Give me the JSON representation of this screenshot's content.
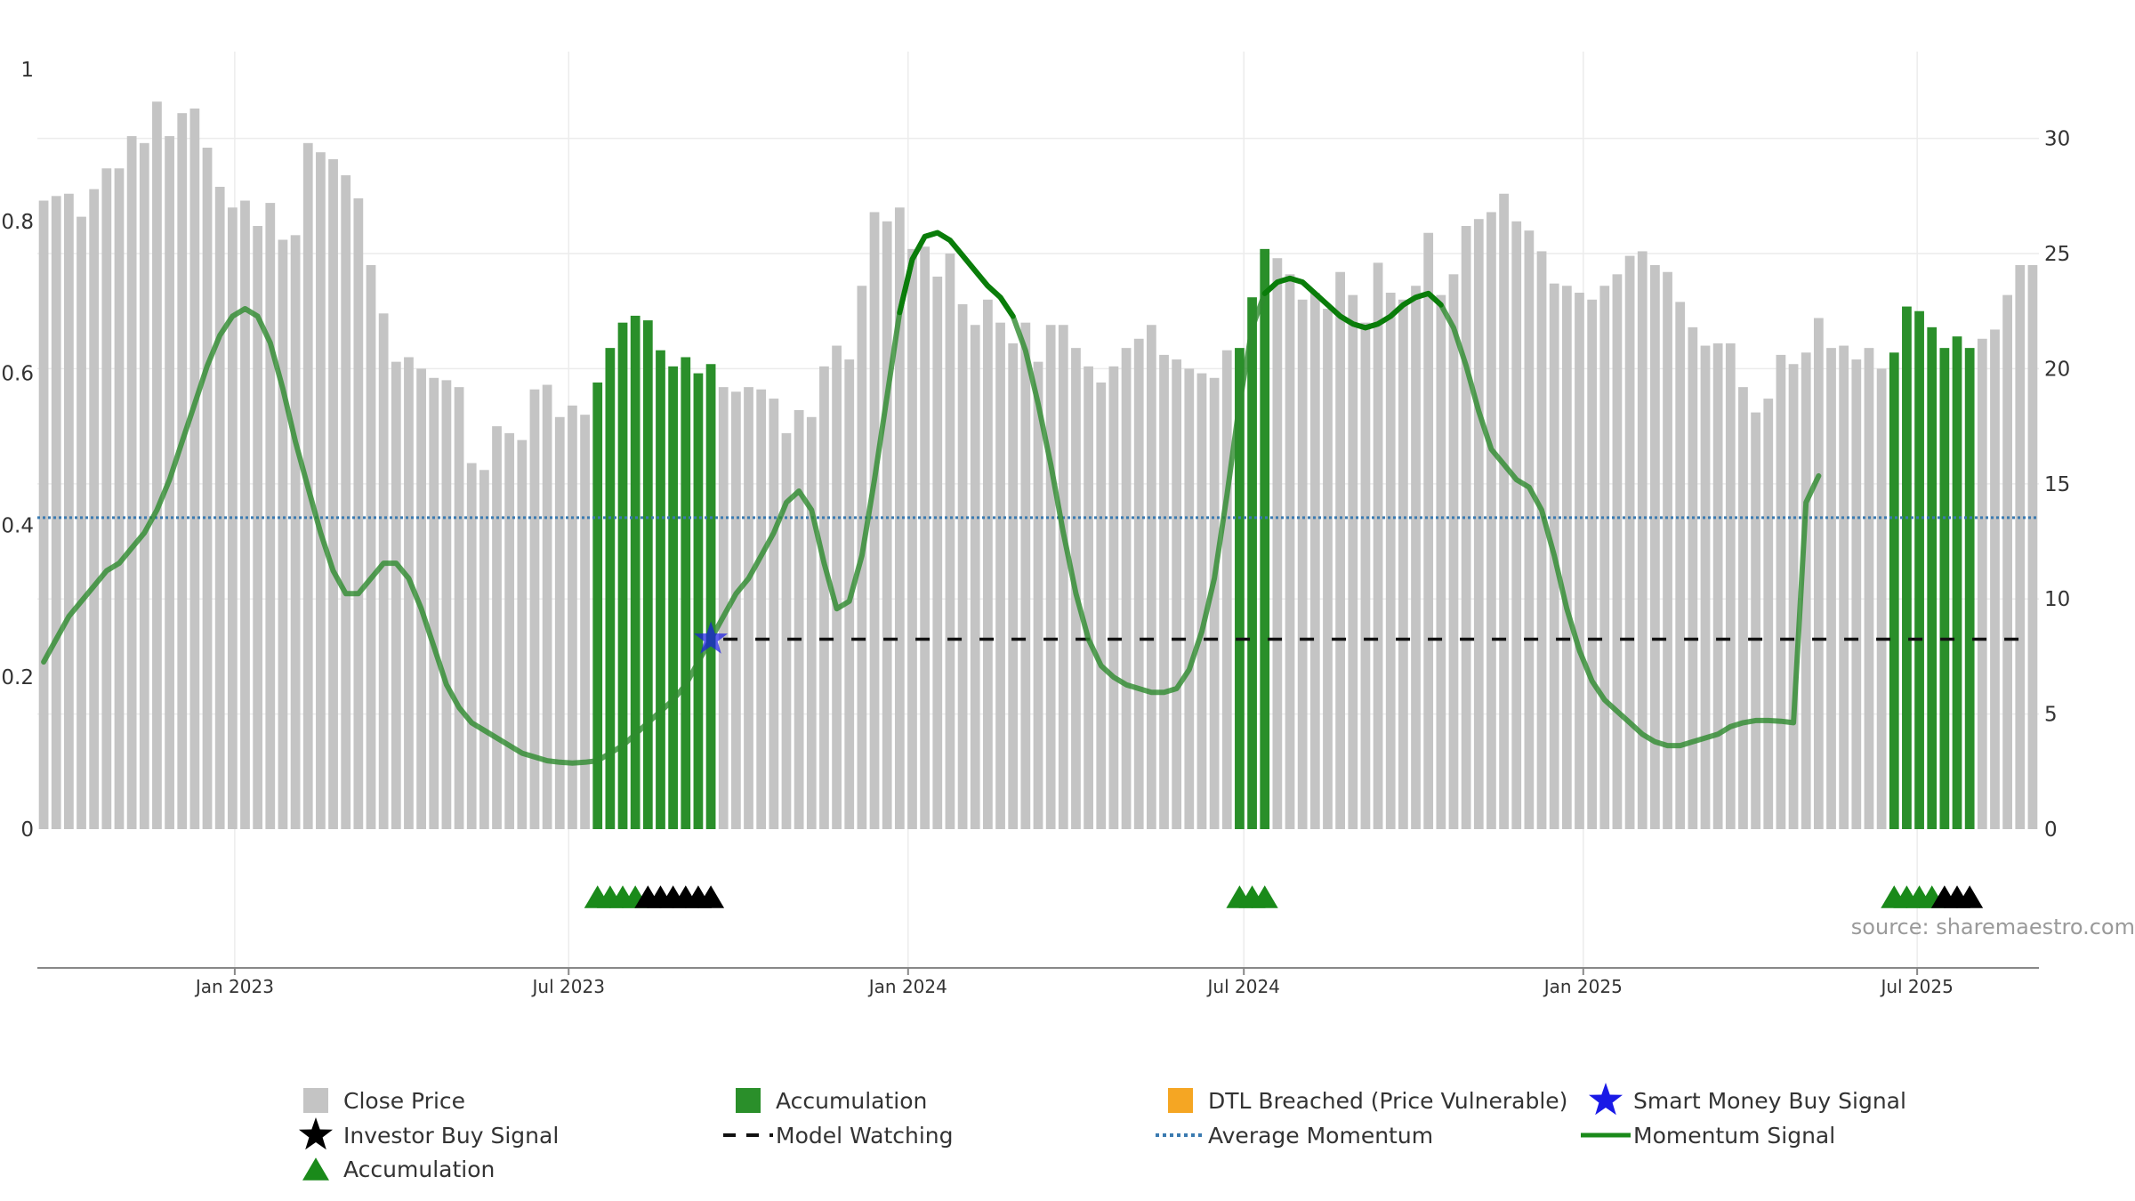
{
  "chart_data": {
    "type": "bar",
    "title": "",
    "source": "source: sharemaestro.com",
    "colors": {
      "close_price": "#c4c4c4",
      "accumulation": "#2a8f2a",
      "accumulation_marker": "#1a8a1a",
      "investor_marker": "#000000",
      "smart_money": "#1a1ae6",
      "model_watching": "#111111",
      "average_momentum": "#3a7ab0",
      "momentum": "#2e8b2e",
      "dtl": "#f5a623"
    },
    "x_axis": {
      "start": "2022-09-16",
      "end": "2025-09-05",
      "ticks": [
        {
          "date": "2023-01-01",
          "label": "Jan 2023"
        },
        {
          "date": "2023-07-01",
          "label": "Jul 2023"
        },
        {
          "date": "2024-01-01",
          "label": "Jan 2024"
        },
        {
          "date": "2024-07-01",
          "label": "Jul 2024"
        },
        {
          "date": "2025-01-01",
          "label": "Jan 2025"
        },
        {
          "date": "2025-07-01",
          "label": "Jul 2025"
        }
      ]
    },
    "left_axis": {
      "range": [
        0,
        1
      ],
      "tick_values": [
        0,
        0.2,
        0.4,
        0.6,
        0.8,
        1
      ],
      "tick_labels": [
        "0",
        "0.2",
        "0.4",
        "0.6",
        "0.8",
        "1"
      ]
    },
    "right_axis": {
      "range": [
        0,
        33
      ],
      "tick_values": [
        0,
        5,
        10,
        15,
        20,
        25,
        30
      ],
      "tick_labels": [
        "0",
        "5",
        "10",
        "15",
        "20",
        "25",
        "30"
      ]
    },
    "close_price": {
      "name": "Close Price",
      "values": [
        27.3,
        27.5,
        27.6,
        26.6,
        27.8,
        28.7,
        28.7,
        30.1,
        29.8,
        31.6,
        30.1,
        31.1,
        31.3,
        29.6,
        27.9,
        27.0,
        27.3,
        26.2,
        27.2,
        25.6,
        25.8,
        29.8,
        29.4,
        29.1,
        28.4,
        27.4,
        24.5,
        22.4,
        20.3,
        20.5,
        20.0,
        19.6,
        19.5,
        19.2,
        15.9,
        15.6,
        17.5,
        17.2,
        16.9,
        19.1,
        19.3,
        17.9,
        18.4,
        18.0,
        19.4,
        20.9,
        22.0,
        22.3,
        22.1,
        20.8,
        20.1,
        20.5,
        19.8,
        20.2,
        19.2,
        19.0,
        19.2,
        19.1,
        18.7,
        17.2,
        18.2,
        17.9,
        20.1,
        21.0,
        20.4,
        23.6,
        26.8,
        26.4,
        27.0,
        25.2,
        25.3,
        24.0,
        25.0,
        22.8,
        21.9,
        23.0,
        22.0,
        21.1,
        22.0,
        20.3,
        21.9,
        21.9,
        20.9,
        20.1,
        19.4,
        20.1,
        20.9,
        21.3,
        21.9,
        20.6,
        20.4,
        20.0,
        19.8,
        19.6,
        20.8,
        20.9,
        23.1,
        25.2,
        24.8,
        24.1,
        23.0,
        23.3,
        22.6,
        24.2,
        23.2,
        22.0,
        24.6,
        23.3,
        23.0,
        23.6,
        25.9,
        23.2,
        24.1,
        26.2,
        26.5,
        26.8,
        27.6,
        26.4,
        26.0,
        25.1,
        23.7,
        23.6,
        23.3,
        23.0,
        23.6,
        24.1,
        24.9,
        25.1,
        24.5,
        24.2,
        22.9,
        21.8,
        21.0,
        21.1,
        21.1,
        19.2,
        18.1,
        18.7,
        20.6,
        20.2,
        20.7,
        22.2,
        20.9,
        21.0,
        20.4,
        20.9,
        20.0,
        20.7,
        22.7,
        22.5,
        21.8,
        20.9,
        21.4,
        20.9,
        21.3,
        21.7,
        23.2,
        24.5,
        24.5
      ],
      "accumulation_ranges": [
        [
          44,
          53
        ],
        [
          95,
          97
        ],
        [
          147,
          153
        ]
      ]
    },
    "markers": {
      "accumulation_triangles": [
        [
          44,
          47
        ],
        [
          95,
          97
        ],
        [
          147,
          150
        ]
      ],
      "investor_triangles": [
        [
          48,
          53
        ],
        [
          151,
          153
        ]
      ],
      "smart_money_star": {
        "index": 53,
        "value": 0.25
      }
    },
    "model_watching": {
      "name": "Model Watching",
      "value": 0.25,
      "from_index": 53
    },
    "average_momentum": {
      "name": "Average Momentum",
      "value": 0.41
    },
    "momentum": {
      "name": "Momentum Signal",
      "points": [
        [
          0,
          0.22
        ],
        [
          1,
          0.25
        ],
        [
          2,
          0.28
        ],
        [
          3,
          0.3
        ],
        [
          4,
          0.32
        ],
        [
          5,
          0.34
        ],
        [
          6,
          0.35
        ],
        [
          7,
          0.37
        ],
        [
          8,
          0.39
        ],
        [
          9,
          0.42
        ],
        [
          10,
          0.46
        ],
        [
          11,
          0.51
        ],
        [
          12,
          0.56
        ],
        [
          13,
          0.61
        ],
        [
          14,
          0.65
        ],
        [
          15,
          0.675
        ],
        [
          16,
          0.685
        ],
        [
          17,
          0.675
        ],
        [
          18,
          0.64
        ],
        [
          19,
          0.58
        ],
        [
          20,
          0.51
        ],
        [
          21,
          0.45
        ],
        [
          22,
          0.39
        ],
        [
          23,
          0.34
        ],
        [
          24,
          0.31
        ],
        [
          25,
          0.31
        ],
        [
          26,
          0.33
        ],
        [
          27,
          0.35
        ],
        [
          28,
          0.35
        ],
        [
          29,
          0.33
        ],
        [
          30,
          0.29
        ],
        [
          31,
          0.24
        ],
        [
          32,
          0.19
        ],
        [
          33,
          0.16
        ],
        [
          34,
          0.14
        ],
        [
          35,
          0.13
        ],
        [
          36,
          0.12
        ],
        [
          37,
          0.11
        ],
        [
          38,
          0.1
        ],
        [
          39,
          0.095
        ],
        [
          40,
          0.09
        ],
        [
          41,
          0.088
        ],
        [
          42,
          0.087
        ],
        [
          43,
          0.088
        ],
        [
          44,
          0.09
        ],
        [
          45,
          0.1
        ],
        [
          46,
          0.11
        ],
        [
          47,
          0.125
        ],
        [
          48,
          0.14
        ],
        [
          49,
          0.155
        ],
        [
          50,
          0.17
        ],
        [
          51,
          0.19
        ],
        [
          52,
          0.22
        ],
        [
          53,
          0.25
        ],
        [
          54,
          0.28
        ],
        [
          55,
          0.31
        ],
        [
          56,
          0.33
        ],
        [
          57,
          0.36
        ],
        [
          58,
          0.39
        ],
        [
          59,
          0.43
        ],
        [
          60,
          0.445
        ],
        [
          61,
          0.42
        ],
        [
          62,
          0.35
        ],
        [
          63,
          0.29
        ],
        [
          64,
          0.3
        ],
        [
          65,
          0.36
        ],
        [
          66,
          0.46
        ],
        [
          67,
          0.57
        ],
        [
          68,
          0.68
        ],
        [
          69,
          0.75
        ],
        [
          70,
          0.78
        ],
        [
          71,
          0.785
        ],
        [
          72,
          0.775
        ],
        [
          73,
          0.755
        ],
        [
          74,
          0.735
        ],
        [
          75,
          0.715
        ],
        [
          76,
          0.7
        ],
        [
          77,
          0.675
        ],
        [
          78,
          0.63
        ],
        [
          79,
          0.56
        ],
        [
          80,
          0.48
        ],
        [
          81,
          0.39
        ],
        [
          82,
          0.31
        ],
        [
          83,
          0.25
        ],
        [
          84,
          0.215
        ],
        [
          85,
          0.2
        ],
        [
          86,
          0.19
        ],
        [
          87,
          0.185
        ],
        [
          88,
          0.18
        ],
        [
          89,
          0.18
        ],
        [
          90,
          0.185
        ],
        [
          91,
          0.21
        ],
        [
          92,
          0.26
        ],
        [
          93,
          0.33
        ],
        [
          94,
          0.44
        ],
        [
          95,
          0.56
        ],
        [
          96,
          0.66
        ],
        [
          97,
          0.705
        ],
        [
          98,
          0.72
        ],
        [
          99,
          0.725
        ],
        [
          100,
          0.72
        ],
        [
          101,
          0.705
        ],
        [
          102,
          0.69
        ],
        [
          103,
          0.675
        ],
        [
          104,
          0.665
        ],
        [
          105,
          0.66
        ],
        [
          106,
          0.665
        ],
        [
          107,
          0.675
        ],
        [
          108,
          0.69
        ],
        [
          109,
          0.7
        ],
        [
          110,
          0.705
        ],
        [
          111,
          0.69
        ],
        [
          112,
          0.66
        ],
        [
          113,
          0.61
        ],
        [
          114,
          0.55
        ],
        [
          115,
          0.5
        ],
        [
          116,
          0.48
        ],
        [
          117,
          0.46
        ],
        [
          118,
          0.45
        ],
        [
          119,
          0.42
        ],
        [
          120,
          0.36
        ],
        [
          121,
          0.29
        ],
        [
          122,
          0.235
        ],
        [
          123,
          0.195
        ],
        [
          124,
          0.17
        ],
        [
          125,
          0.155
        ],
        [
          126,
          0.14
        ],
        [
          127,
          0.125
        ],
        [
          128,
          0.115
        ],
        [
          129,
          0.11
        ],
        [
          130,
          0.11
        ],
        [
          131,
          0.115
        ],
        [
          132,
          0.12
        ],
        [
          133,
          0.125
        ],
        [
          134,
          0.135
        ],
        [
          135,
          0.14
        ],
        [
          136,
          0.143
        ],
        [
          137,
          0.143
        ],
        [
          138,
          0.142
        ],
        [
          139,
          0.14
        ],
        [
          140,
          0.43
        ],
        [
          141,
          0.465
        ]
      ],
      "bold_segments": [
        [
          68,
          77
        ],
        [
          97,
          111
        ]
      ]
    },
    "legend": [
      {
        "key": "close_price",
        "label": "Close Price"
      },
      {
        "key": "accumulation_bar",
        "label": "Accumulation"
      },
      {
        "key": "dtl",
        "label": "DTL Breached (Price Vulnerable)"
      },
      {
        "key": "smart_money",
        "label": "Smart Money Buy Signal"
      },
      {
        "key": "investor",
        "label": "Investor Buy Signal"
      },
      {
        "key": "model_watching",
        "label": "Model Watching"
      },
      {
        "key": "average_momentum",
        "label": "Average Momentum"
      },
      {
        "key": "momentum",
        "label": "Momentum Signal"
      },
      {
        "key": "accumulation_triangle",
        "label": "Accumulation"
      }
    ]
  }
}
